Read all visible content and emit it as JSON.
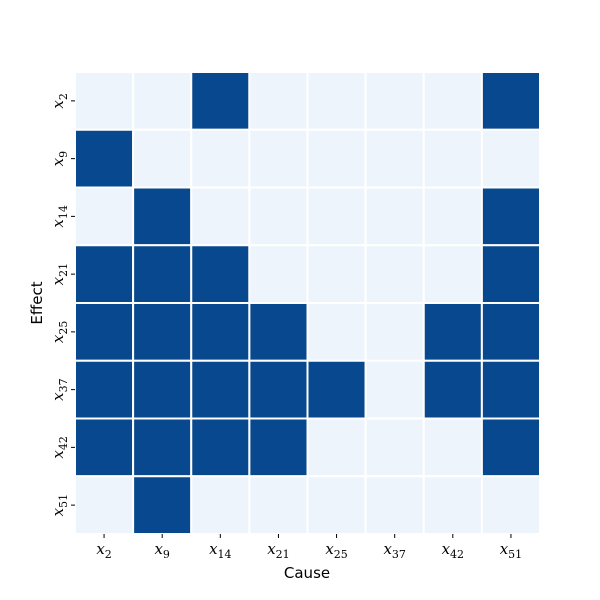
{
  "chart_data": {
    "type": "heatmap",
    "title": "",
    "xlabel": "Cause",
    "ylabel": "Effect",
    "x_categories": [
      {
        "base": "x",
        "sub": "2"
      },
      {
        "base": "x",
        "sub": "9"
      },
      {
        "base": "x",
        "sub": "14"
      },
      {
        "base": "x",
        "sub": "21"
      },
      {
        "base": "x",
        "sub": "25"
      },
      {
        "base": "x",
        "sub": "37"
      },
      {
        "base": "x",
        "sub": "42"
      },
      {
        "base": "x",
        "sub": "51"
      }
    ],
    "y_categories": [
      {
        "base": "x",
        "sub": "2"
      },
      {
        "base": "x",
        "sub": "9"
      },
      {
        "base": "x",
        "sub": "14"
      },
      {
        "base": "x",
        "sub": "21"
      },
      {
        "base": "x",
        "sub": "25"
      },
      {
        "base": "x",
        "sub": "37"
      },
      {
        "base": "x",
        "sub": "42"
      },
      {
        "base": "x",
        "sub": "51"
      }
    ],
    "matrix": [
      [
        0,
        0,
        1,
        0,
        0,
        0,
        0,
        1
      ],
      [
        1,
        0,
        0,
        0,
        0,
        0,
        0,
        0
      ],
      [
        0,
        1,
        0,
        0,
        0,
        0,
        0,
        1
      ],
      [
        1,
        1,
        1,
        0,
        0,
        0,
        0,
        1
      ],
      [
        1,
        1,
        1,
        1,
        0,
        0,
        1,
        1
      ],
      [
        1,
        1,
        1,
        1,
        1,
        0,
        1,
        1
      ],
      [
        1,
        1,
        1,
        1,
        0,
        0,
        0,
        1
      ],
      [
        0,
        1,
        0,
        0,
        0,
        0,
        0,
        0
      ]
    ],
    "colors": {
      "on": "#08488e",
      "off": "#eef4fc",
      "grid": "#ffffff"
    },
    "colorbar": false,
    "grid": true
  }
}
